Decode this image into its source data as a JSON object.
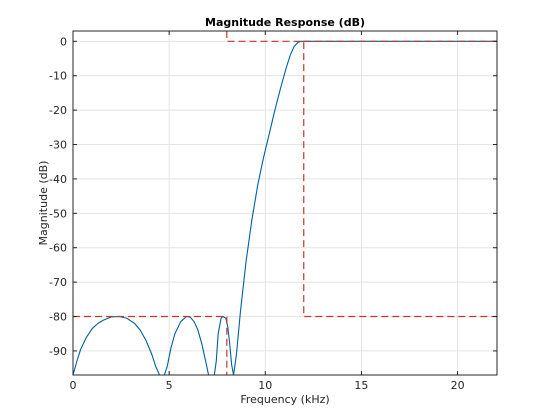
{
  "chart_data": {
    "type": "line",
    "title": "Magnitude Response (dB)",
    "xlabel": "Frequency (kHz)",
    "ylabel": "Magnitude (dB)",
    "xlim": [
      0,
      22.05
    ],
    "ylim": [
      -97,
      3
    ],
    "xticks": [
      0,
      5,
      10,
      15,
      20
    ],
    "yticks": [
      0,
      -10,
      -20,
      -30,
      -40,
      -50,
      -60,
      -70,
      -80,
      -90
    ],
    "grid": true,
    "colors": {
      "response": "#00609f",
      "mask": "#c0392b",
      "grid": "#e4e4e4",
      "axes": "#262626"
    },
    "series": [
      {
        "style": "solid",
        "color": "#00609f",
        "x": [
          0.0,
          0.2,
          0.4,
          0.7,
          1.0,
          1.3,
          1.6,
          2.0,
          2.4,
          2.8,
          3.2,
          3.5,
          3.8,
          4.1,
          4.3,
          4.5,
          4.6,
          4.75,
          4.9,
          5.1,
          5.3,
          5.6,
          5.9,
          6.1,
          6.3,
          6.5,
          6.7,
          6.9,
          7.05,
          7.15,
          7.25,
          7.35,
          7.45,
          7.55,
          7.7,
          7.8,
          7.95,
          8.05,
          8.15,
          8.25,
          8.35,
          8.5,
          8.7,
          9.0,
          9.3,
          9.6,
          9.9,
          10.2,
          10.5,
          10.8,
          11.1,
          11.3,
          11.5,
          11.7,
          11.85,
          12.0,
          12.1,
          12.3,
          13.0,
          15.0,
          18.0,
          22.05
        ],
        "y": [
          -97,
          -93,
          -89.5,
          -86,
          -83.5,
          -82,
          -81,
          -80.1,
          -80,
          -80.5,
          -82,
          -84,
          -87,
          -91,
          -94.5,
          -97,
          -97,
          -97,
          -94.5,
          -89,
          -85,
          -81.5,
          -80,
          -80.2,
          -81.5,
          -84,
          -88,
          -93,
          -97,
          -97,
          -97,
          -97,
          -93,
          -85,
          -80.5,
          -80,
          -80.5,
          -83,
          -88,
          -94,
          -97,
          -91,
          -79,
          -64,
          -52,
          -42,
          -34,
          -27,
          -20,
          -13.5,
          -7.5,
          -4,
          -1.5,
          -0.3,
          0,
          0,
          0,
          0,
          0,
          0,
          0,
          0
        ]
      },
      {
        "style": "dashed",
        "color": "#c0392b",
        "x": [
          0,
          8,
          8
        ],
        "y": [
          -80,
          -80,
          -97
        ]
      },
      {
        "style": "dashed",
        "color": "#c0392b",
        "x": [
          8,
          8,
          12,
          12,
          22.05
        ],
        "y": [
          3,
          0,
          0,
          -80,
          -80
        ]
      },
      {
        "style": "dashed",
        "color": "#c0392b",
        "x": [
          12,
          22.05
        ],
        "y": [
          0,
          0
        ]
      }
    ]
  }
}
